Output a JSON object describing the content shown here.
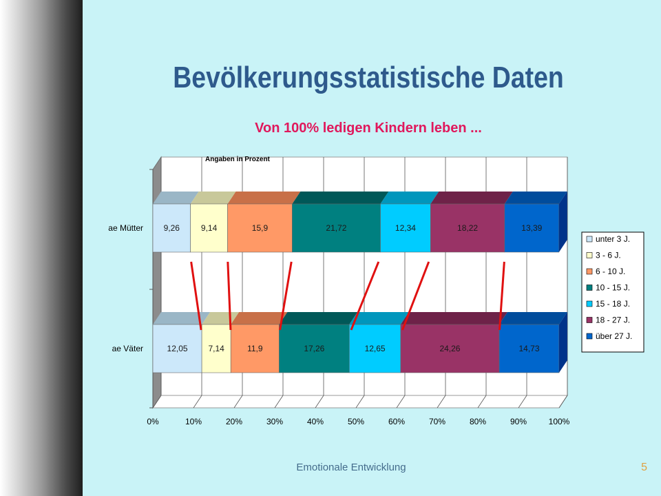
{
  "slide": {
    "title": "Bevölkerungsstatistische Daten",
    "subtitle": "Von 100% ledigen Kindern leben ...",
    "footer": "Emotionale Entwicklung",
    "page_number": "5"
  },
  "chart_data": {
    "type": "bar",
    "orientation": "horizontal",
    "stacked": "100%",
    "annotation": "Angaben in Prozent",
    "categories": [
      "ae Mütter",
      "ae Väter"
    ],
    "value_labels": [
      [
        "9,26",
        "9,14",
        "15,9",
        "21,72",
        "12,34",
        "18,22",
        "13,39"
      ],
      [
        "12,05",
        "7,14",
        "11,9",
        "17,26",
        "12,65",
        "24,26",
        "14,73"
      ]
    ],
    "series": [
      {
        "name": "unter 3 J.",
        "values": [
          9.26,
          12.05
        ],
        "color": "#cce8fa",
        "top_color": "#9ab6c6"
      },
      {
        "name": "3 - 6 J.",
        "values": [
          9.14,
          7.14
        ],
        "color": "#ffffcc",
        "top_color": "#c8c89a"
      },
      {
        "name": "6 - 10 J.",
        "values": [
          15.9,
          11.9
        ],
        "color": "#ff9966",
        "top_color": "#c87048"
      },
      {
        "name": "10 - 15 J.",
        "values": [
          21.72,
          17.26
        ],
        "color": "#008080",
        "top_color": "#005858"
      },
      {
        "name": "15 - 18 J.",
        "values": [
          12.34,
          12.65
        ],
        "color": "#00ccff",
        "top_color": "#0096bc"
      },
      {
        "name": "18 - 27 J.",
        "values": [
          18.22,
          24.26
        ],
        "color": "#993366",
        "top_color": "#6e2248"
      },
      {
        "name": "über 27 J.",
        "values": [
          13.39,
          14.73
        ],
        "color": "#0066cc",
        "top_color": "#004c9c"
      }
    ],
    "x_ticks": [
      "0%",
      "10%",
      "20%",
      "30%",
      "40%",
      "50%",
      "60%",
      "70%",
      "80%",
      "90%",
      "100%"
    ],
    "xlim": [
      0,
      100
    ],
    "grid": true,
    "legend_position": "right",
    "connector_color": "#e01010"
  }
}
